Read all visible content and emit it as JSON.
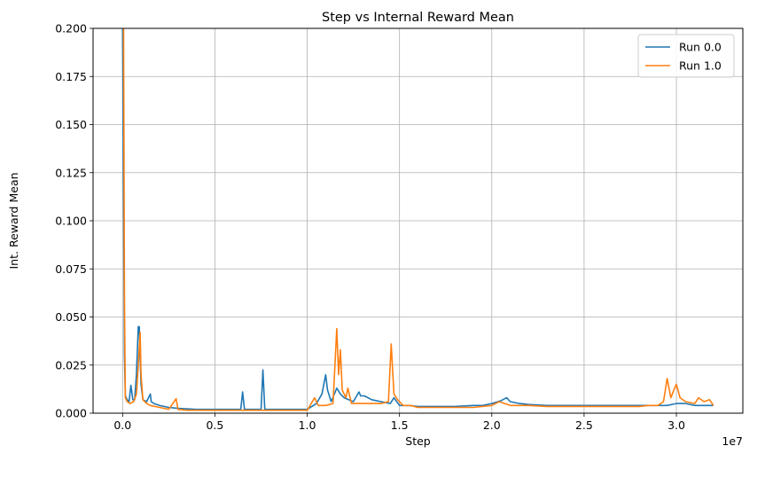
{
  "chart_data": {
    "type": "line",
    "title": "Step vs Internal Reward Mean",
    "xlabel": "Step",
    "ylabel": "Int. Reward Mean",
    "x_offset_label": "1e7",
    "xlim": [
      -1600000,
      33600000
    ],
    "ylim": [
      0,
      0.2
    ],
    "x_ticks": [
      0,
      5000000,
      10000000,
      15000000,
      20000000,
      25000000,
      30000000
    ],
    "x_tick_labels": [
      "0.0",
      "0.5",
      "1.0",
      "1.5",
      "2.0",
      "2.5",
      "3.0"
    ],
    "y_ticks": [
      0,
      0.025,
      0.05,
      0.075,
      0.1,
      0.125,
      0.15,
      0.175,
      0.2
    ],
    "y_tick_labels": [
      "0.000",
      "0.025",
      "0.050",
      "0.075",
      "0.100",
      "0.125",
      "0.150",
      "0.175",
      "0.200"
    ],
    "grid": true,
    "legend_position": "top-right",
    "series": [
      {
        "name": "Run 0.0",
        "color": "#1f77b4",
        "x": [
          0,
          100000,
          150000,
          250000,
          350000,
          450000,
          550000,
          650000,
          750000,
          850000,
          900000,
          1000000,
          1100000,
          1300000,
          1500000,
          1550000,
          1700000,
          2000000,
          2500000,
          3000000,
          4000000,
          5000000,
          6000000,
          6400000,
          6500000,
          6600000,
          7000000,
          7500000,
          7600000,
          7700000,
          8000000,
          9000000,
          10000000,
          10500000,
          10800000,
          11000000,
          11100000,
          11300000,
          11600000,
          11800000,
          12000000,
          12500000,
          12800000,
          12900000,
          13100000,
          13500000,
          14000000,
          14500000,
          14700000,
          15000000,
          15500000,
          16000000,
          17000000,
          18000000,
          19000000,
          19500000,
          20000000,
          20500000,
          20800000,
          21000000,
          21500000,
          22000000,
          23000000,
          24000000,
          25000000,
          26000000,
          27000000,
          28000000,
          29000000,
          29500000,
          30000000,
          30500000,
          31000000,
          31500000,
          32000000
        ],
        "y": [
          0.2,
          0.03,
          0.009,
          0.007,
          0.006,
          0.0145,
          0.007,
          0.007,
          0.02,
          0.045,
          0.045,
          0.015,
          0.007,
          0.006,
          0.01,
          0.006,
          0.005,
          0.004,
          0.003,
          0.0025,
          0.002,
          0.002,
          0.002,
          0.002,
          0.011,
          0.002,
          0.002,
          0.002,
          0.0225,
          0.002,
          0.002,
          0.002,
          0.002,
          0.005,
          0.01,
          0.02,
          0.012,
          0.006,
          0.013,
          0.01,
          0.008,
          0.006,
          0.011,
          0.009,
          0.009,
          0.007,
          0.006,
          0.005,
          0.008,
          0.004,
          0.004,
          0.0035,
          0.0035,
          0.0035,
          0.004,
          0.004,
          0.005,
          0.0065,
          0.008,
          0.006,
          0.005,
          0.0045,
          0.004,
          0.004,
          0.004,
          0.004,
          0.004,
          0.004,
          0.004,
          0.004,
          0.005,
          0.005,
          0.004,
          0.004,
          0.004
        ]
      },
      {
        "name": "Run 1.0",
        "color": "#ff7f0e",
        "x": [
          0,
          50000,
          100000,
          150000,
          250000,
          400000,
          600000,
          750000,
          850000,
          950000,
          1000000,
          1100000,
          1300000,
          1500000,
          2000000,
          2500000,
          2900000,
          3000000,
          3500000,
          4000000,
          5000000,
          6000000,
          7000000,
          8000000,
          9000000,
          10000000,
          10400000,
          10600000,
          11000000,
          11400000,
          11600000,
          11700000,
          11800000,
          11900000,
          12100000,
          12200000,
          12400000,
          12800000,
          13500000,
          14000000,
          14400000,
          14550000,
          14700000,
          14900000,
          15200000,
          15600000,
          16000000,
          17000000,
          18000000,
          19000000,
          20000000,
          20400000,
          20700000,
          21000000,
          21500000,
          22000000,
          23000000,
          24000000,
          25000000,
          26000000,
          27000000,
          28000000,
          28500000,
          29000000,
          29300000,
          29500000,
          29700000,
          29900000,
          30000000,
          30200000,
          30500000,
          31000000,
          31200000,
          31500000,
          31800000,
          32000000
        ],
        "y": [
          0.2,
          0.2,
          0.06,
          0.008,
          0.006,
          0.005,
          0.006,
          0.01,
          0.025,
          0.042,
          0.02,
          0.007,
          0.005,
          0.004,
          0.003,
          0.002,
          0.0075,
          0.002,
          0.0015,
          0.0015,
          0.0015,
          0.0015,
          0.0015,
          0.0015,
          0.0015,
          0.0015,
          0.008,
          0.004,
          0.004,
          0.005,
          0.044,
          0.02,
          0.033,
          0.012,
          0.008,
          0.013,
          0.005,
          0.005,
          0.005,
          0.005,
          0.006,
          0.036,
          0.01,
          0.007,
          0.004,
          0.004,
          0.003,
          0.003,
          0.003,
          0.003,
          0.004,
          0.006,
          0.005,
          0.004,
          0.004,
          0.004,
          0.0035,
          0.0035,
          0.0035,
          0.0035,
          0.0035,
          0.0035,
          0.004,
          0.004,
          0.006,
          0.018,
          0.008,
          0.013,
          0.015,
          0.008,
          0.006,
          0.005,
          0.008,
          0.006,
          0.007,
          0.004
        ]
      }
    ]
  }
}
